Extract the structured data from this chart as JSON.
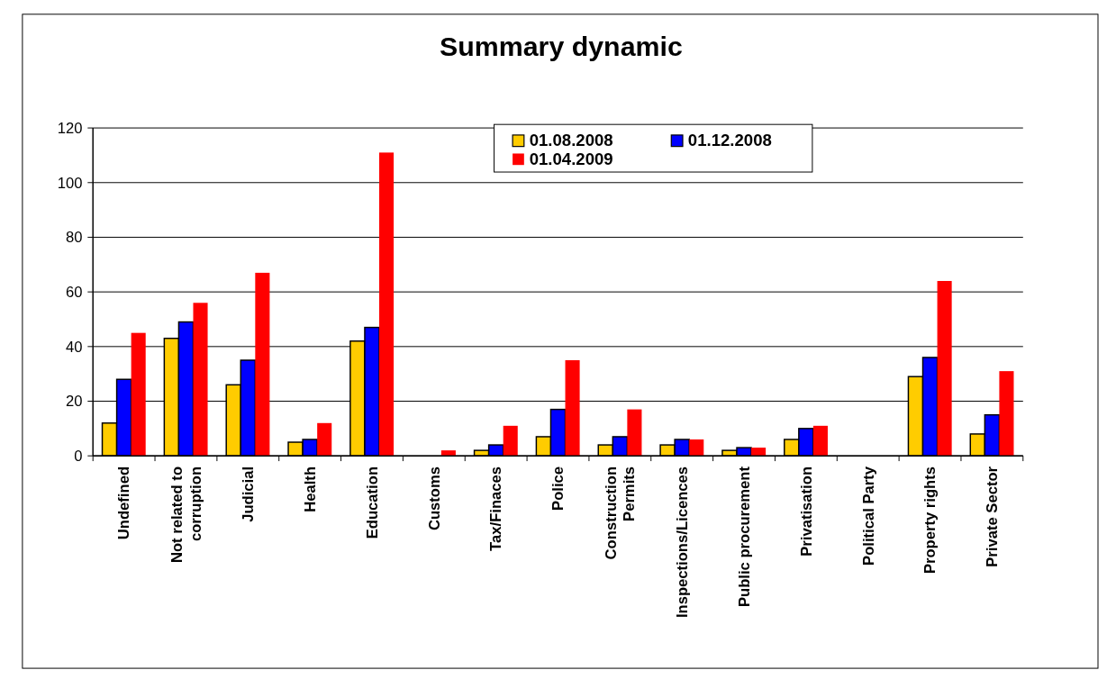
{
  "chart_data": {
    "type": "bar",
    "title": "Summary dynamic",
    "categories": [
      "Undefined",
      "Not related to corruption",
      "Judicial",
      "Health",
      "Education",
      "Customs",
      "Tax/Finaces",
      "Police",
      "Construction Permits",
      "Inspections/Licences",
      "Public procurement",
      "Privatisation",
      "Political Party",
      "Property rights",
      "Private Sector"
    ],
    "series": [
      {
        "name": "01.08.2008",
        "color": "#ffcc00",
        "values": [
          12,
          43,
          26,
          5,
          42,
          0,
          2,
          7,
          4,
          4,
          2,
          6,
          0,
          29,
          8
        ]
      },
      {
        "name": "01.12.2008",
        "color": "#0000ff",
        "values": [
          28,
          49,
          35,
          6,
          47,
          0,
          4,
          17,
          7,
          6,
          3,
          10,
          0,
          36,
          15
        ]
      },
      {
        "name": "01.04.2009",
        "color": "#ff0000",
        "values": [
          45,
          56,
          67,
          12,
          111,
          2,
          11,
          35,
          17,
          6,
          3,
          11,
          0,
          64,
          31
        ]
      }
    ],
    "ylim": [
      0,
      120
    ],
    "yticks": [
      0,
      20,
      40,
      60,
      80,
      100,
      120
    ],
    "grid": "y",
    "legend": "top"
  }
}
